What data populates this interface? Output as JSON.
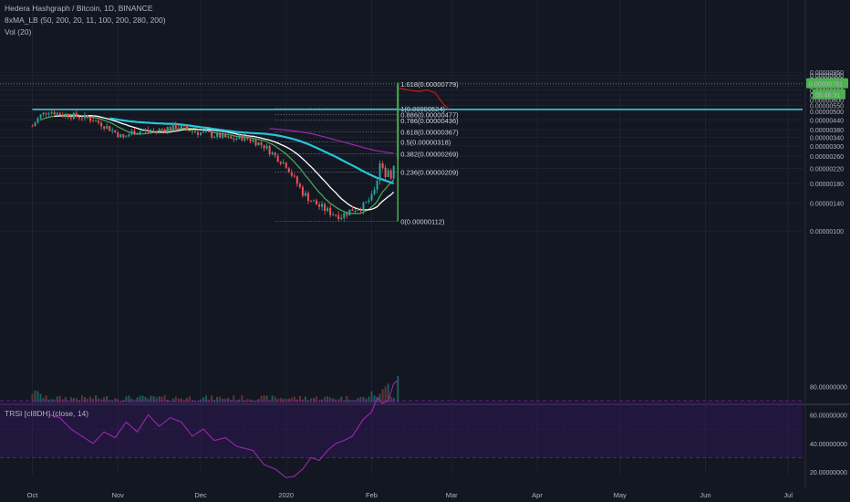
{
  "header": {
    "title": "Hedera Hashgraph / Bitcoin, 1D, BINANCE",
    "ma_indicator": "8xMA_LB (50, 200, 20, 11, 100, 200, 280, 200)",
    "vol_indicator": "Vol (20)",
    "rsi_indicator": "TRSI [cI8DH] (close, 14)"
  },
  "price_axis": {
    "ticks": [
      "0.00000950",
      "0.00000900",
      "0.00000850",
      "0.00000800",
      "0.00000750",
      "0.00000700",
      "0.00000650",
      "0.00000600",
      "0.00000550",
      "0.00000500",
      "0.00000440",
      "0.00000380",
      "0.00000340",
      "0.00000300",
      "0.00000260",
      "0.00000220",
      "0.00000180",
      "0.00000140",
      "0.00000100"
    ],
    "tick_values": [
      950,
      900,
      850,
      800,
      750,
      700,
      650,
      600,
      550,
      500,
      440,
      380,
      340,
      300,
      260,
      220,
      180,
      140,
      100
    ],
    "current_price": "0.00000781",
    "countdown": "05:46:31"
  },
  "rsi_axis": {
    "ticks": [
      "80.00000000",
      "60.00000000",
      "40.00000000",
      "20.00000000"
    ],
    "tick_values": [
      80,
      60,
      40,
      20
    ]
  },
  "time_axis": {
    "labels": [
      "Oct",
      "Nov",
      "Dec",
      "2020",
      "Feb",
      "Mar",
      "Apr",
      "May",
      "Jun",
      "Jul"
    ],
    "label_days": [
      0,
      31,
      61,
      92,
      123,
      152,
      183,
      213,
      244,
      274
    ]
  },
  "colors": {
    "background": "#131722",
    "up": "#26a69a",
    "down": "#ef5350",
    "green": "#4caf50",
    "cyan": "#26c6da",
    "white": "#ffffff",
    "purple": "#9c27b0",
    "projection": "#b71c1c",
    "resistance": "#4dd0e1",
    "fib_line": "#4caf50",
    "price_tag": "#4caf50",
    "rsi_line": "#9c27b0",
    "rsi_band": "#4a148c"
  },
  "chart_data": [
    {
      "type": "candlestick",
      "title": "Hedera Hashgraph / Bitcoin, 1D, BINANCE",
      "unit": "satoshi",
      "x_unit": "days since 2019-10-01",
      "close_path": [
        [
          0,
          400
        ],
        [
          3,
          470
        ],
        [
          6,
          505
        ],
        [
          10,
          480
        ],
        [
          14,
          470
        ],
        [
          18,
          460
        ],
        [
          22,
          440
        ],
        [
          26,
          405
        ],
        [
          30,
          365
        ],
        [
          33,
          335
        ],
        [
          36,
          365
        ],
        [
          40,
          375
        ],
        [
          44,
          370
        ],
        [
          48,
          385
        ],
        [
          52,
          400
        ],
        [
          56,
          380
        ],
        [
          60,
          365
        ],
        [
          64,
          355
        ],
        [
          68,
          345
        ],
        [
          72,
          330
        ],
        [
          76,
          340
        ],
        [
          80,
          325
        ],
        [
          84,
          300
        ],
        [
          88,
          260
        ],
        [
          92,
          230
        ],
        [
          95,
          190
        ],
        [
          98,
          160
        ],
        [
          101,
          145
        ],
        [
          104,
          135
        ],
        [
          108,
          125
        ],
        [
          112,
          120
        ],
        [
          116,
          130
        ],
        [
          120,
          135
        ],
        [
          123,
          150
        ],
        [
          125,
          190
        ],
        [
          126,
          240
        ],
        [
          127,
          225
        ],
        [
          128,
          200
        ],
        [
          129,
          210
        ],
        [
          130,
          200
        ],
        [
          131,
          230
        ],
        [
          132,
          480
        ],
        [
          132.5,
          779
        ]
      ],
      "fibonacci": [
        {
          "level": "1.618",
          "value": "0.00000779",
          "price": 779
        },
        {
          "level": "1",
          "value": "0.00000524",
          "price": 524
        },
        {
          "level": "0.886",
          "value": "0.00000477",
          "price": 477
        },
        {
          "level": "0.786",
          "value": "0.00000436",
          "price": 436
        },
        {
          "level": "0.618",
          "value": "0.00000367",
          "price": 367
        },
        {
          "level": "0.5",
          "value": "0.00000318",
          "price": 318
        },
        {
          "level": "0.382",
          "value": "0.00000269",
          "price": 269
        },
        {
          "level": "0.236",
          "value": "0.00000209",
          "price": 209
        },
        {
          "level": "0",
          "value": "0.00000112",
          "price": 112
        }
      ],
      "resistance_price": 516,
      "projection_path": [
        [
          133,
          725
        ],
        [
          137,
          700
        ],
        [
          140,
          688
        ],
        [
          143,
          705
        ],
        [
          146,
          675
        ],
        [
          149,
          560
        ],
        [
          151,
          520
        ]
      ]
    },
    {
      "type": "line",
      "title": "TRSI [cI8DH] (close, 14)",
      "ylim": [
        15,
        85
      ],
      "upper_band": 70,
      "lower_band": 30,
      "path": [
        [
          6,
          60
        ],
        [
          10,
          58
        ],
        [
          14,
          50
        ],
        [
          18,
          45
        ],
        [
          22,
          40
        ],
        [
          26,
          48
        ],
        [
          30,
          44
        ],
        [
          34,
          55
        ],
        [
          38,
          48
        ],
        [
          42,
          60
        ],
        [
          46,
          52
        ],
        [
          50,
          58
        ],
        [
          54,
          55
        ],
        [
          58,
          45
        ],
        [
          62,
          50
        ],
        [
          66,
          42
        ],
        [
          70,
          44
        ],
        [
          74,
          38
        ],
        [
          80,
          35
        ],
        [
          84,
          25
        ],
        [
          88,
          22
        ],
        [
          92,
          16
        ],
        [
          95,
          17
        ],
        [
          98,
          22
        ],
        [
          101,
          30
        ],
        [
          104,
          28
        ],
        [
          107,
          35
        ],
        [
          110,
          40
        ],
        [
          113,
          42
        ],
        [
          116,
          45
        ],
        [
          120,
          57
        ],
        [
          123,
          62
        ],
        [
          125,
          72
        ],
        [
          127,
          68
        ],
        [
          129,
          70
        ],
        [
          131,
          82
        ],
        [
          132.5,
          84
        ]
      ]
    }
  ]
}
